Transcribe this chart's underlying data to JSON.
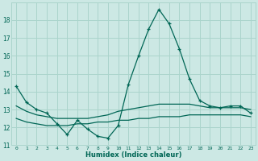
{
  "xlabel": "Humidex (Indice chaleur)",
  "ylabel": "",
  "background_color": "#cce8e4",
  "grid_color": "#aad4cc",
  "line_color": "#006655",
  "x": [
    0,
    1,
    2,
    3,
    4,
    5,
    6,
    7,
    8,
    9,
    10,
    11,
    12,
    13,
    14,
    15,
    16,
    17,
    18,
    19,
    20,
    21,
    22,
    23
  ],
  "line1": [
    14.3,
    13.4,
    13.0,
    12.8,
    12.2,
    11.6,
    12.4,
    11.9,
    11.5,
    11.4,
    12.1,
    14.4,
    16.0,
    17.5,
    18.6,
    17.8,
    16.4,
    14.7,
    13.5,
    13.2,
    13.1,
    13.2,
    13.2,
    12.8
  ],
  "line2": [
    13.2,
    12.9,
    12.7,
    12.6,
    12.5,
    12.5,
    12.5,
    12.5,
    12.6,
    12.7,
    12.9,
    13.0,
    13.1,
    13.2,
    13.3,
    13.3,
    13.3,
    13.3,
    13.2,
    13.1,
    13.1,
    13.1,
    13.1,
    13.0
  ],
  "line3": [
    12.5,
    12.3,
    12.2,
    12.1,
    12.1,
    12.1,
    12.2,
    12.2,
    12.3,
    12.3,
    12.4,
    12.4,
    12.5,
    12.5,
    12.6,
    12.6,
    12.6,
    12.7,
    12.7,
    12.7,
    12.7,
    12.7,
    12.7,
    12.6
  ],
  "ylim": [
    11,
    19
  ],
  "yticks": [
    11,
    12,
    13,
    14,
    15,
    16,
    17,
    18
  ],
  "xlim": [
    -0.5,
    23.5
  ]
}
